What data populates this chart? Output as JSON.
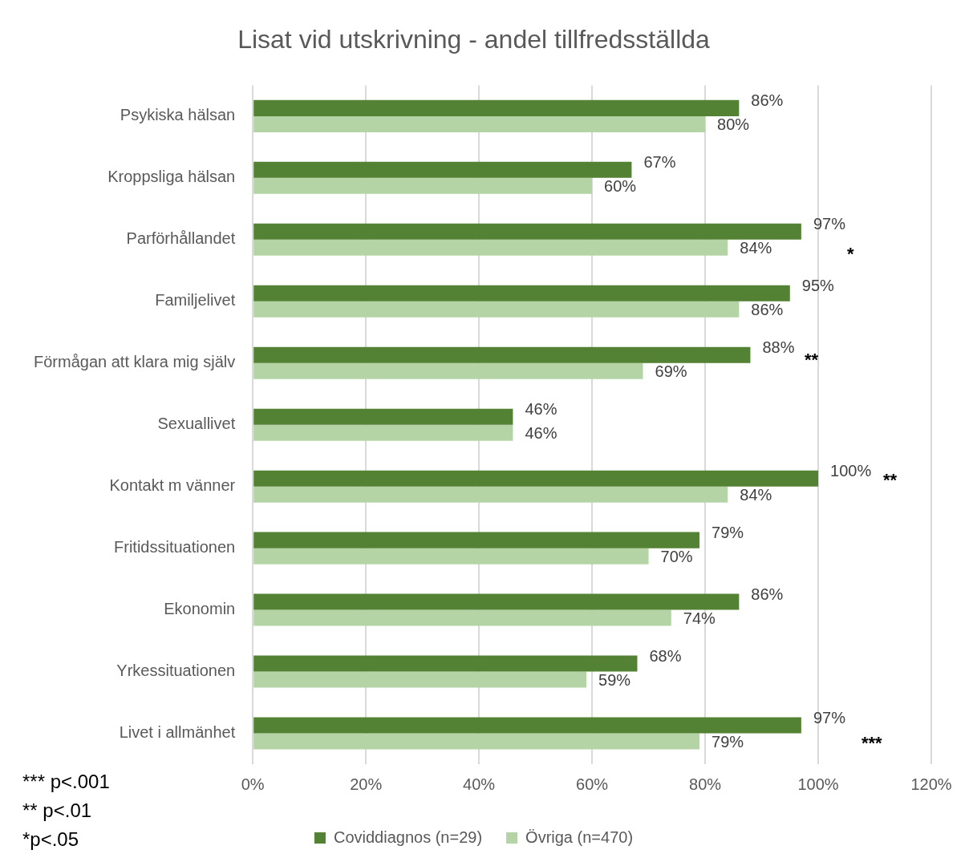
{
  "chart_data": {
    "type": "bar",
    "orientation": "horizontal",
    "title": "Lisat vid utskrivning - andel tillfredsställda",
    "categories": [
      "Psykiska hälsan",
      "Kroppsliga hälsan",
      "Parförhållandet",
      "Familjelivet",
      "Förmågan att klara mig själv",
      "Sexuallivet",
      "Kontakt m vänner",
      "Fritidssituationen",
      "Ekonomin",
      "Yrkessituationen",
      "Livet i allmänhet"
    ],
    "series": [
      {
        "name": "Coviddiagnos (n=29)",
        "color": "#548235",
        "values": [
          86,
          67,
          97,
          95,
          88,
          46,
          100,
          79,
          86,
          68,
          97
        ],
        "value_labels": [
          "86%",
          "67%",
          "97%",
          "95%",
          "88%",
          "46%",
          "100%",
          "79%",
          "86%",
          "68%",
          "97%"
        ]
      },
      {
        "name": "Övriga (n=470)",
        "color": "#b5d4a6",
        "values": [
          80,
          60,
          84,
          86,
          69,
          46,
          84,
          70,
          74,
          59,
          79
        ],
        "value_labels": [
          "80%",
          "60%",
          "84%",
          "86%",
          "69%",
          "46%",
          "84%",
          "70%",
          "74%",
          "59%",
          "79%"
        ]
      }
    ],
    "xlim": [
      0,
      120
    ],
    "xticks": [
      {
        "value": 0,
        "label": "0%"
      },
      {
        "value": 20,
        "label": "20%"
      },
      {
        "value": 40,
        "label": "40%"
      },
      {
        "value": 60,
        "label": "60%"
      },
      {
        "value": 80,
        "label": "80%"
      },
      {
        "value": 100,
        "label": "100%"
      },
      {
        "value": 120,
        "label": "120%"
      }
    ],
    "grid": "x",
    "legend": "bottom",
    "annotations": [
      "*",
      "**",
      "**",
      "***",
      "*** p<.001",
      "** p<.01",
      "*p<.05"
    ]
  }
}
